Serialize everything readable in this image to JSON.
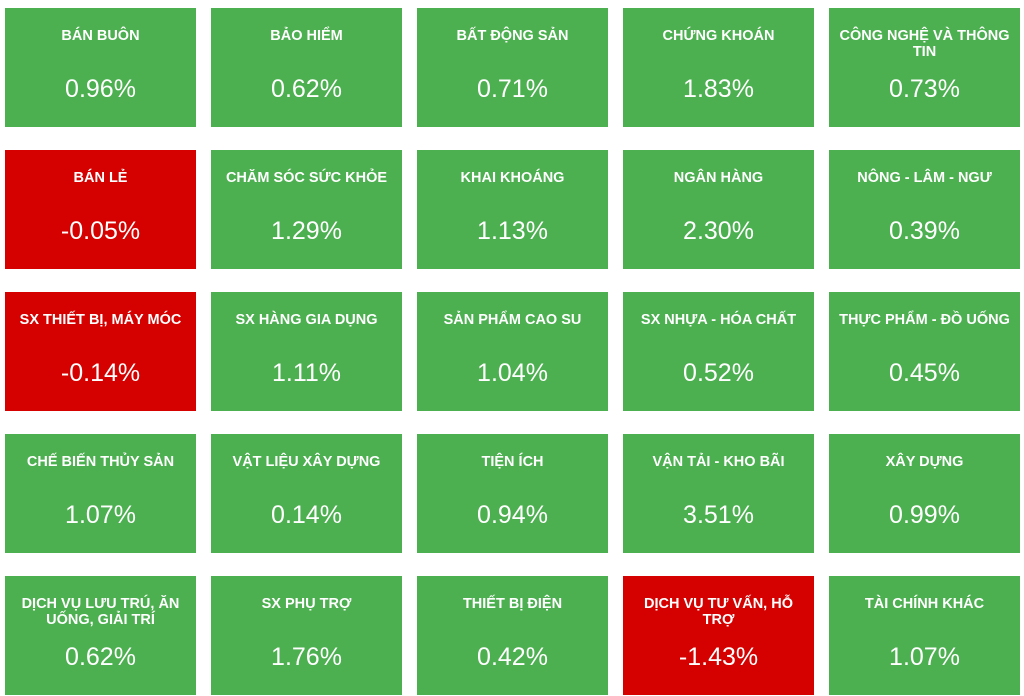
{
  "colors": {
    "positive": "#4caf50",
    "negative": "#d50000",
    "text": "#ffffff"
  },
  "sectors": [
    {
      "name": "BÁN BUÔN",
      "change": "0.96%",
      "direction": "up"
    },
    {
      "name": "BẢO HIỂM",
      "change": "0.62%",
      "direction": "up"
    },
    {
      "name": "BẤT ĐỘNG SẢN",
      "change": "0.71%",
      "direction": "up"
    },
    {
      "name": "CHỨNG KHOÁN",
      "change": "1.83%",
      "direction": "up"
    },
    {
      "name": "CÔNG NGHỆ VÀ THÔNG TIN",
      "change": "0.73%",
      "direction": "up"
    },
    {
      "name": "BÁN LẺ",
      "change": "-0.05%",
      "direction": "down"
    },
    {
      "name": "CHĂM SÓC SỨC KHỎE",
      "change": "1.29%",
      "direction": "up"
    },
    {
      "name": "KHAI KHOÁNG",
      "change": "1.13%",
      "direction": "up"
    },
    {
      "name": "NGÂN HÀNG",
      "change": "2.30%",
      "direction": "up"
    },
    {
      "name": "NÔNG - LÂM - NGƯ",
      "change": "0.39%",
      "direction": "up"
    },
    {
      "name": "SX THIẾT BỊ, MÁY MÓC",
      "change": "-0.14%",
      "direction": "down"
    },
    {
      "name": "SX HÀNG GIA DỤNG",
      "change": "1.11%",
      "direction": "up"
    },
    {
      "name": "SẢN PHẨM CAO SU",
      "change": "1.04%",
      "direction": "up"
    },
    {
      "name": "SX NHỰA - HÓA CHẤT",
      "change": "0.52%",
      "direction": "up"
    },
    {
      "name": "THỰC PHẨM - ĐỒ UỐNG",
      "change": "0.45%",
      "direction": "up"
    },
    {
      "name": "CHẾ BIẾN THỦY SẢN",
      "change": "1.07%",
      "direction": "up"
    },
    {
      "name": "VẬT LIỆU XÂY DỰNG",
      "change": "0.14%",
      "direction": "up"
    },
    {
      "name": "TIỆN ÍCH",
      "change": "0.94%",
      "direction": "up"
    },
    {
      "name": "VẬN TẢI - KHO BÃI",
      "change": "3.51%",
      "direction": "up"
    },
    {
      "name": "XÂY DỰNG",
      "change": "0.99%",
      "direction": "up"
    },
    {
      "name": "DỊCH VỤ LƯU TRÚ, ĂN UỐNG, GIẢI TRÍ",
      "change": "0.62%",
      "direction": "up"
    },
    {
      "name": "SX PHỤ TRỢ",
      "change": "1.76%",
      "direction": "up"
    },
    {
      "name": "THIẾT BỊ ĐIỆN",
      "change": "0.42%",
      "direction": "up"
    },
    {
      "name": "DỊCH VỤ TƯ VẤN, HỖ TRỢ",
      "change": "-1.43%",
      "direction": "down"
    },
    {
      "name": "TÀI CHÍNH KHÁC",
      "change": "1.07%",
      "direction": "up"
    }
  ]
}
